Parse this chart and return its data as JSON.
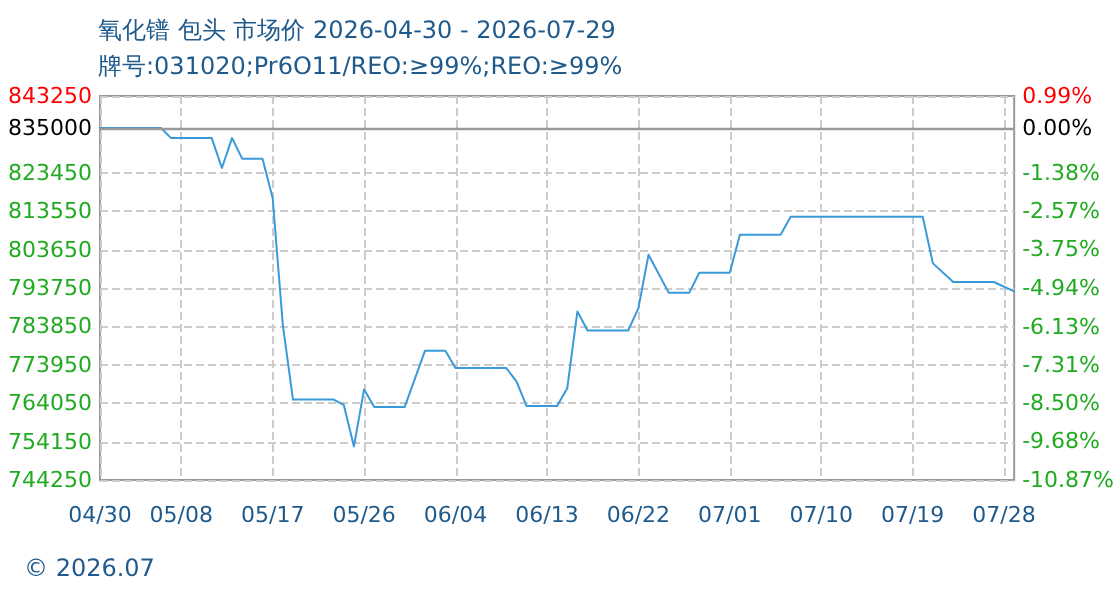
{
  "chart_data": {
    "type": "line",
    "title": "氧化镨 包头 市场价 2026-04-30 - 2026-07-29",
    "subtitle": "牌号:031020;Pr6O11/REO:≥99%;REO:≥99%",
    "annotations": [
      "© 2026.07"
    ],
    "x": [
      "2026-04-30",
      "2026-05-06",
      "2026-05-07",
      "2026-05-11",
      "2026-05-12",
      "2026-05-13",
      "2026-05-14",
      "2026-05-16",
      "2026-05-17",
      "2026-05-18",
      "2026-05-19",
      "2026-05-23",
      "2026-05-24",
      "2026-05-25",
      "2026-05-26",
      "2026-05-27",
      "2026-05-30",
      "2026-06-01",
      "2026-06-03",
      "2026-06-04",
      "2026-06-09",
      "2026-06-10",
      "2026-06-11",
      "2026-06-14",
      "2026-06-15",
      "2026-06-16",
      "2026-06-17",
      "2026-06-21",
      "2026-06-22",
      "2026-06-23",
      "2026-06-25",
      "2026-06-27",
      "2026-06-28",
      "2026-07-01",
      "2026-07-02",
      "2026-07-06",
      "2026-07-07",
      "2026-07-20",
      "2026-07-21",
      "2026-07-23",
      "2026-07-27",
      "2026-07-29"
    ],
    "series": [
      {
        "color": "#3a9ad9",
        "values": [
          835000,
          835000,
          832400,
          832400,
          824700,
          832400,
          827100,
          827100,
          816900,
          784200,
          765000,
          765000,
          763600,
          752900,
          767600,
          763100,
          763100,
          777600,
          777600,
          773100,
          773100,
          769700,
          763300,
          763300,
          767900,
          787700,
          782800,
          782800,
          788500,
          802300,
          792500,
          792500,
          797700,
          797700,
          807500,
          807500,
          812100,
          812100,
          800100,
          795300,
          795300,
          792900
        ]
      }
    ],
    "xlim": [
      "2026-04-30",
      "2026-07-29"
    ],
    "xticks": [
      {
        "value": "2026-04-30",
        "label": "04/30"
      },
      {
        "value": "2026-05-08",
        "label": "05/08"
      },
      {
        "value": "2026-05-17",
        "label": "05/17"
      },
      {
        "value": "2026-05-26",
        "label": "05/26"
      },
      {
        "value": "2026-06-04",
        "label": "06/04"
      },
      {
        "value": "2026-06-13",
        "label": "06/13"
      },
      {
        "value": "2026-06-22",
        "label": "06/22"
      },
      {
        "value": "2026-07-01",
        "label": "07/01"
      },
      {
        "value": "2026-07-10",
        "label": "07/10"
      },
      {
        "value": "2026-07-19",
        "label": "07/19"
      },
      {
        "value": "2026-07-28",
        "label": "07/28"
      }
    ],
    "ylim": [
      744250,
      843250
    ],
    "yticks": [
      744250,
      754150,
      764050,
      773950,
      783850,
      793750,
      803650,
      813550,
      823450,
      835000,
      843250
    ],
    "y2lim": [
      -10.87,
      0.99
    ],
    "y2ticks": [
      {
        "value": -10.87,
        "label": "-10.87%"
      },
      {
        "value": -9.68,
        "label": "-9.68%"
      },
      {
        "value": -8.5,
        "label": "-8.50%"
      },
      {
        "value": -7.31,
        "label": "-7.31%"
      },
      {
        "value": -6.13,
        "label": "-6.13%"
      },
      {
        "value": -4.94,
        "label": "-4.94%"
      },
      {
        "value": -3.75,
        "label": "-3.75%"
      },
      {
        "value": -2.57,
        "label": "-2.57%"
      },
      {
        "value": -1.38,
        "label": "-1.38%"
      },
      {
        "value": 0,
        "label": "0.00%"
      },
      {
        "value": 0.99,
        "label": "0.99%"
      }
    ],
    "ref_lines": [
      {
        "axis": "y",
        "value": 835000,
        "color": "#999999"
      }
    ],
    "grid": true,
    "marker": "none",
    "line_style": "solid"
  }
}
